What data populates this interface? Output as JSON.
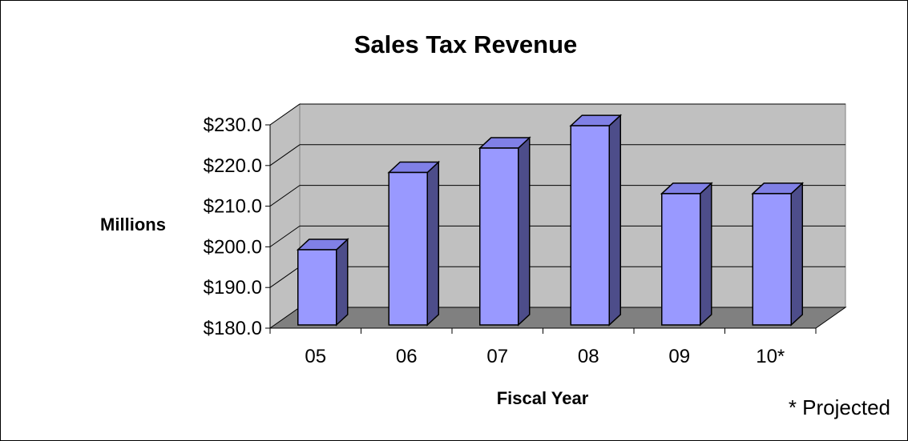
{
  "chart_data": {
    "type": "bar",
    "title": "Sales Tax Revenue",
    "xlabel": "Fiscal Year",
    "ylabel": "Millions",
    "categories": [
      "05",
      "06",
      "07",
      "08",
      "09",
      "10*"
    ],
    "values": [
      198.5,
      217.5,
      223.5,
      229.0,
      212.3,
      212.3
    ],
    "ylim": [
      180,
      230
    ],
    "yticks": [
      180,
      190,
      200,
      210,
      220,
      230
    ],
    "ytick_labels": [
      "$180.0",
      "$190.0",
      "$200.0",
      "$210.0",
      "$220.0",
      "$230.0"
    ],
    "grid": true,
    "legend": "none",
    "three_d": true,
    "footnote": "* Projected",
    "colors": {
      "bar_front": "#9999FF",
      "bar_side": "#4D4D8A",
      "bar_top": "#8080E6",
      "wall": "#C0C0C0",
      "floor": "#808080"
    }
  }
}
